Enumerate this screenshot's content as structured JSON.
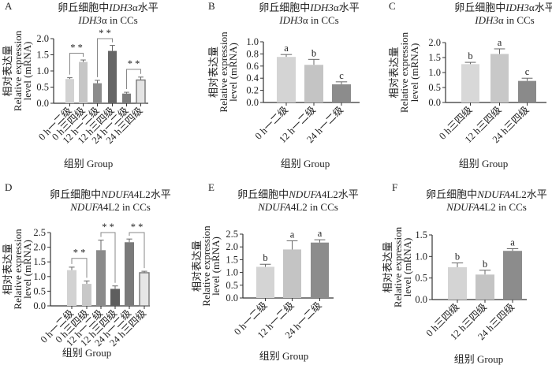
{
  "chart_data": [
    {
      "type": "bar",
      "panel": "A",
      "title": {
        "prefix": "卵丘细胞中",
        "gene_italic": "IDH3",
        "gene_rest": "α",
        "suffix_cn": "水平",
        "suffix_en": " in CCs"
      },
      "ylabel": [
        "相对表达量",
        "Relative expression",
        "level (mRNA)"
      ],
      "xlabel": "组别 Group",
      "categories": [
        "0 h一二级",
        "0 h三四级",
        "12 h一二级",
        "12 h三四级",
        "24 h一二级",
        "24 h三四级"
      ],
      "values": [
        0.75,
        1.28,
        0.62,
        1.62,
        0.3,
        0.72
      ],
      "errors": [
        0.04,
        0.06,
        0.09,
        0.17,
        0.04,
        0.09
      ],
      "ylim": [
        0,
        2.0
      ],
      "yticks": [
        "0.0",
        "0.5",
        "1.0",
        "1.5",
        "2.0"
      ],
      "colors": [
        "#d2d2d2",
        "#c6c6c6",
        "#8c8c8c",
        "#666666",
        "#7c7c7c",
        "#e4e4e4"
      ],
      "outlined": [
        false,
        false,
        false,
        false,
        false,
        true
      ],
      "brackets": [
        {
          "from": 0,
          "to": 1,
          "level": 1.55,
          "label": "* *"
        },
        {
          "from": 2,
          "to": 3,
          "level": 2.0,
          "label": "* *"
        },
        {
          "from": 4,
          "to": 5,
          "level": 1.05,
          "label": "* *"
        }
      ],
      "letters": []
    },
    {
      "type": "bar",
      "panel": "B",
      "title": {
        "prefix": "卵丘细胞中",
        "gene_italic": "IDH3",
        "gene_rest": "α",
        "suffix_cn": "水平",
        "suffix_en": " in CCs"
      },
      "ylabel": [
        "相对表达量",
        "Relative expression",
        "level (mRNA)"
      ],
      "xlabel": "组别 Group",
      "categories": [
        "0 h一二级",
        "12 h一二级",
        "24 h一二级"
      ],
      "values": [
        0.75,
        0.62,
        0.3
      ],
      "errors": [
        0.04,
        0.09,
        0.04
      ],
      "ylim": [
        0,
        1.0
      ],
      "yticks": [
        "0.0",
        "0.2",
        "0.4",
        "0.6",
        "0.8",
        "1.0"
      ],
      "colors": [
        "#d4d4d4",
        "#c4c4c4",
        "#8c8c8c"
      ],
      "outlined": [
        false,
        false,
        false
      ],
      "brackets": [],
      "letters": [
        "a",
        "b",
        "c"
      ]
    },
    {
      "type": "bar",
      "panel": "C",
      "title": {
        "prefix": "卵丘细胞中",
        "gene_italic": "IDH3",
        "gene_rest": "α",
        "suffix_cn": "水平",
        "suffix_en": " in CCs"
      },
      "ylabel": [
        "相对表达量",
        "Relative expression",
        "level (mRNA)"
      ],
      "xlabel": "组别 Group",
      "categories": [
        "0 h三四级",
        "12 h三四级",
        "24 h三四级"
      ],
      "values": [
        1.28,
        1.62,
        0.72
      ],
      "errors": [
        0.06,
        0.17,
        0.09
      ],
      "ylim": [
        0,
        2.0
      ],
      "yticks": [
        "0.0",
        "0.5",
        "1.0",
        "1.5",
        "2.0"
      ],
      "colors": [
        "#d8d8d8",
        "#c8c8c8",
        "#8a8a8a"
      ],
      "outlined": [
        false,
        false,
        false
      ],
      "brackets": [],
      "letters": [
        "b",
        "a",
        "c"
      ]
    },
    {
      "type": "bar",
      "panel": "D",
      "title": {
        "prefix": "卵丘细胞中",
        "gene_italic": "NDUFA",
        "gene_rest": "4L2",
        "suffix_cn": "水平",
        "suffix_en": " in CCs"
      },
      "ylabel": [
        "相对表达量",
        "Relative expression",
        "level (mRNA)"
      ],
      "xlabel": "组别 Group",
      "categories": [
        "0 h一二级",
        "0 h三四级",
        "12 h一二级",
        "12 h三四级",
        "24 h一二级",
        "24 h三四级"
      ],
      "values": [
        1.22,
        0.75,
        1.9,
        0.58,
        2.17,
        1.13
      ],
      "errors": [
        0.1,
        0.1,
        0.34,
        0.1,
        0.11,
        0.05
      ],
      "ylim": [
        0,
        2.5
      ],
      "yticks": [
        "0.0",
        "0.5",
        "1.0",
        "1.5",
        "2.0",
        "2.5"
      ],
      "colors": [
        "#d2d2d2",
        "#c8c8c8",
        "#8a8a8a",
        "#5e5e5e",
        "#7a7a7a",
        "#e6e6e6"
      ],
      "outlined": [
        false,
        false,
        false,
        false,
        false,
        true
      ],
      "brackets": [
        {
          "from": 0,
          "to": 1,
          "level": 1.62,
          "label": "* *"
        },
        {
          "from": 2,
          "to": 3,
          "level": 2.5,
          "label": "* *"
        },
        {
          "from": 4,
          "to": 5,
          "level": 2.5,
          "label": "* *"
        }
      ],
      "letters": []
    },
    {
      "type": "bar",
      "panel": "E",
      "title": {
        "prefix": "卵丘细胞中",
        "gene_italic": "NDUFA",
        "gene_rest": "4L2",
        "suffix_cn": "水平",
        "suffix_en": " in CCs"
      },
      "ylabel": [
        "相对表达量",
        "Relative expression",
        "level (mRNA)"
      ],
      "xlabel": "组别 Group",
      "categories": [
        "0 h一二级",
        "12 h一二级",
        "24 h一二级"
      ],
      "values": [
        1.22,
        1.9,
        2.17
      ],
      "errors": [
        0.1,
        0.34,
        0.11
      ],
      "ylim": [
        0,
        2.5
      ],
      "yticks": [
        "0.0",
        "0.5",
        "1.0",
        "1.5",
        "2.0",
        "2.5"
      ],
      "colors": [
        "#d4d4d4",
        "#c4c4c4",
        "#8c8c8c"
      ],
      "outlined": [
        false,
        false,
        false
      ],
      "brackets": [],
      "letters": [
        "b",
        "a",
        "a"
      ]
    },
    {
      "type": "bar",
      "panel": "F",
      "title": {
        "prefix": "卵丘细胞中",
        "gene_italic": "NDUFA",
        "gene_rest": "4L2",
        "suffix_cn": "水平",
        "suffix_en": " in CCs"
      },
      "ylabel": [
        "相对表达量",
        "Relative expression",
        "level (mRNA)"
      ],
      "xlabel": "组别 Group",
      "categories": [
        "0 h三四级",
        "12 h三四级",
        "24 h三四级"
      ],
      "values": [
        0.75,
        0.58,
        1.13
      ],
      "errors": [
        0.1,
        0.1,
        0.05
      ],
      "ylim": [
        0,
        1.5
      ],
      "yticks": [
        "0.0",
        "0.5",
        "1.0",
        "1.5"
      ],
      "colors": [
        "#d4d4d4",
        "#c4c4c4",
        "#8c8c8c"
      ],
      "outlined": [
        false,
        false,
        false
      ],
      "brackets": [],
      "letters": [
        "b",
        "b",
        "a"
      ]
    }
  ]
}
